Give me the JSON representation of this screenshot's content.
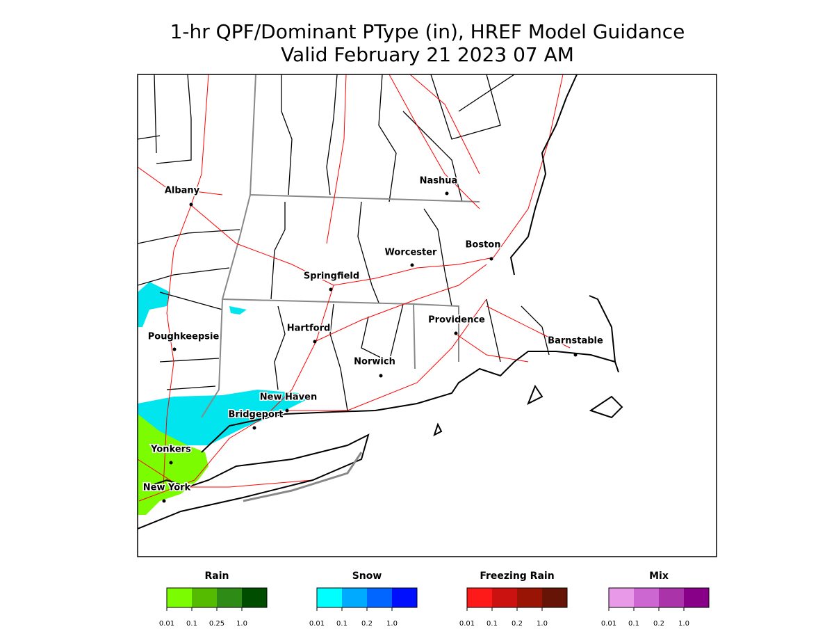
{
  "header": {
    "title_line1": "1-hr QPF/Dominant PType (in), HREF Model Guidance",
    "title_line2": "Valid February 21 2023 07 AM"
  },
  "cities": [
    {
      "label": "Albany"
    },
    {
      "label": "Nashua"
    },
    {
      "label": "Worcester"
    },
    {
      "label": "Boston"
    },
    {
      "label": "Springfield"
    },
    {
      "label": "Hartford"
    },
    {
      "label": "Providence"
    },
    {
      "label": "Poughkeepsie"
    },
    {
      "label": "Barnstable"
    },
    {
      "label": "Norwich"
    },
    {
      "label": "New Haven"
    },
    {
      "label": "Bridgeport"
    },
    {
      "label": "Yonkers"
    },
    {
      "label": "New York"
    }
  ],
  "legends": [
    {
      "title": "Rain",
      "colors": [
        "#7cfc00",
        "#55bb00",
        "#2e8b16",
        "#004d00"
      ],
      "ticks": [
        "0.01",
        "0.1",
        "0.25",
        "1.0"
      ]
    },
    {
      "title": "Snow",
      "colors": [
        "#00ffff",
        "#00aaff",
        "#0066ff",
        "#0010ff"
      ],
      "ticks": [
        "0.01",
        "0.1",
        "0.2",
        "1.0"
      ]
    },
    {
      "title": "Freezing Rain",
      "colors": [
        "#ff1a1a",
        "#cc1111",
        "#991405",
        "#661405"
      ],
      "ticks": [
        "0.01",
        "0.1",
        "0.2",
        "1.0"
      ]
    },
    {
      "title": "Mix",
      "colors": [
        "#e89ae8",
        "#cc66d1",
        "#aa33aa",
        "#880088"
      ],
      "ticks": [
        "0.01",
        "0.1",
        "0.2",
        "1.0"
      ]
    }
  ]
}
